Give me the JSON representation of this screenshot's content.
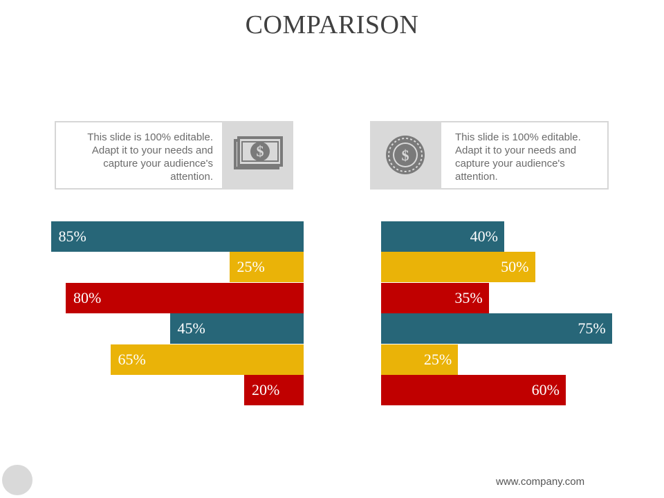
{
  "title": "COMPARISON",
  "left_card": {
    "text": "This slide is 100% editable. Adapt it to your needs and capture your audience's attention.",
    "icon": "money-bill-icon"
  },
  "right_card": {
    "text": "This slide is 100% editable. Adapt it to your needs and capture your audience's attention.",
    "icon": "dollar-coin-icon"
  },
  "colors": {
    "teal": "#276678",
    "yellow": "#EAB308",
    "red": "#C00000"
  },
  "chart_data": [
    {
      "type": "bar",
      "orientation": "horizontal",
      "direction": "right-to-left",
      "values": [
        85,
        25,
        80,
        45,
        65,
        20
      ],
      "labels": [
        "85%",
        "25%",
        "80%",
        "45%",
        "65%",
        "20%"
      ],
      "colors": [
        "#276678",
        "#EAB308",
        "#C00000",
        "#276678",
        "#EAB308",
        "#C00000"
      ],
      "xlim": [
        0,
        100
      ]
    },
    {
      "type": "bar",
      "orientation": "horizontal",
      "direction": "left-to-right",
      "values": [
        40,
        50,
        35,
        75,
        25,
        60
      ],
      "labels": [
        "40%",
        "50%",
        "35%",
        "75%",
        "25%",
        "60%"
      ],
      "colors": [
        "#276678",
        "#EAB308",
        "#C00000",
        "#276678",
        "#EAB308",
        "#C00000"
      ],
      "xlim": [
        0,
        100
      ]
    }
  ],
  "footer": {
    "url": "www.company.com"
  }
}
